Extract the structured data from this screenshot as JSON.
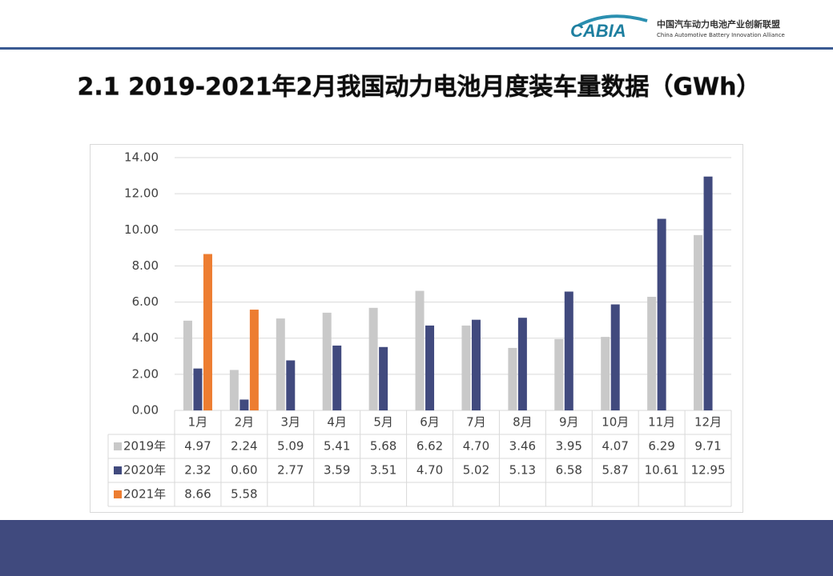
{
  "header": {
    "logo": "CABIA",
    "org_cn": "中国汽车动力电池产业创新联盟",
    "org_en": "China Automotive Battery Innovation Alliance"
  },
  "chart_data": {
    "type": "bar",
    "title": "2.1 2019-2021年2月我国动力电池月度装车量数据（GWh）",
    "categories": [
      "1月",
      "2月",
      "3月",
      "4月",
      "5月",
      "6月",
      "7月",
      "8月",
      "9月",
      "10月",
      "11月",
      "12月"
    ],
    "series": [
      {
        "name": "2019年",
        "color": "#c9c9c9",
        "values": [
          4.97,
          2.24,
          5.09,
          5.41,
          5.68,
          6.62,
          4.7,
          3.46,
          3.95,
          4.07,
          6.29,
          9.71
        ],
        "value_labels": [
          "4.97",
          "2.24",
          "5.09",
          "5.41",
          "5.68",
          "6.62",
          "4.70",
          "3.46",
          "3.95",
          "4.07",
          "6.29",
          "9.71"
        ]
      },
      {
        "name": "2020年",
        "color": "#414a7e",
        "values": [
          2.32,
          0.6,
          2.77,
          3.59,
          3.51,
          4.7,
          5.02,
          5.13,
          6.58,
          5.87,
          10.61,
          12.95
        ],
        "value_labels": [
          "2.32",
          "0.60",
          "2.77",
          "3.59",
          "3.51",
          "4.70",
          "5.02",
          "5.13",
          "6.58",
          "5.87",
          "10.61",
          "12.95"
        ]
      },
      {
        "name": "2021年",
        "color": "#ed7d31",
        "values": [
          8.66,
          5.58,
          null,
          null,
          null,
          null,
          null,
          null,
          null,
          null,
          null,
          null
        ],
        "value_labels": [
          "8.66",
          "5.58",
          null,
          null,
          null,
          null,
          null,
          null,
          null,
          null,
          null,
          null
        ]
      }
    ],
    "ylim": [
      0,
      14
    ],
    "yticks": [
      {
        "value": 0,
        "label": "0.00"
      },
      {
        "value": 2,
        "label": "2.00"
      },
      {
        "value": 4,
        "label": "4.00"
      },
      {
        "value": 6,
        "label": "6.00"
      },
      {
        "value": 8,
        "label": "8.00"
      },
      {
        "value": 10,
        "label": "10.00"
      },
      {
        "value": 12,
        "label": "12.00"
      },
      {
        "value": 14,
        "label": "14.00"
      }
    ],
    "grid": true
  }
}
